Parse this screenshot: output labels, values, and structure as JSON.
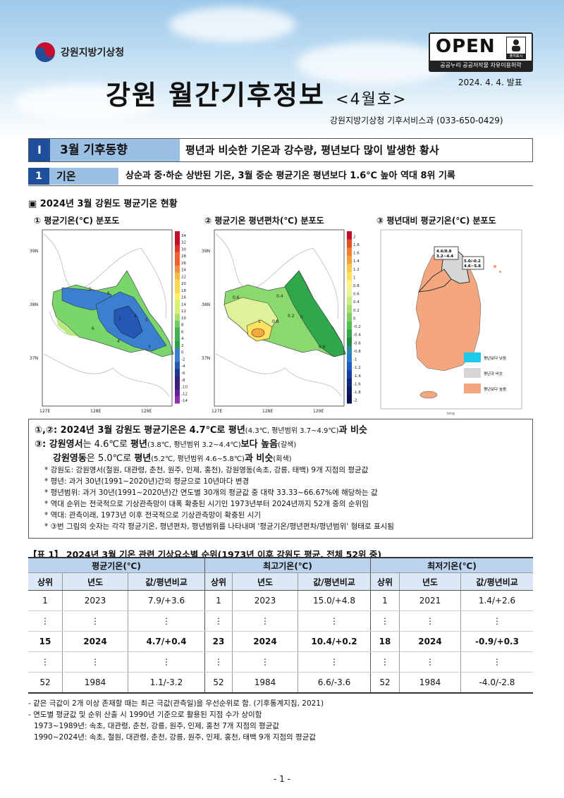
{
  "header": {
    "org": "강원지방기상청",
    "open_badge": {
      "label": "OPEN",
      "sub": "공공누리  공공저작물 자유이용허락",
      "icon_label": "출처표시"
    },
    "title": "강원 월간기후정보",
    "title_sub": "<4월호>",
    "date": "2024. 4. 4. 발표",
    "dept": "강원지방기상청 기후서비스과 (033-650-0429)"
  },
  "section": {
    "num": "Ⅰ",
    "tag": "3월 기후동향",
    "text": "평년과 비슷한 기온과 강수량, 평년보다 많이 발생한 황사"
  },
  "subsection": {
    "num": "1",
    "tag": "기온",
    "text": "상순과 중·하순 상반된 기온, 3월 중순 평균기온 평년보다 1.6℃ 높아 역대 8위 기록"
  },
  "figure": {
    "header": "▣  2024년 3월 강원도 평균기온 현황",
    "maps": [
      {
        "title": "①  평균기온(℃) 분포도",
        "lat_labels": [
          "39N",
          "38N",
          "37N"
        ],
        "lon_labels": [
          "127E",
          "128E",
          "129E"
        ],
        "colorbar": [
          "34",
          "32",
          "30",
          "28",
          "26",
          "24",
          "22",
          "20",
          "18",
          "16",
          "14",
          "12",
          "10",
          "8",
          "6",
          "4",
          "2",
          "0",
          "-2",
          "-4",
          "-6",
          "-8",
          "-10",
          "-12",
          "-14"
        ],
        "contour_labels": [
          "5",
          "6",
          "3",
          "4",
          "5",
          "6",
          "4",
          "3"
        ]
      },
      {
        "title": "②  평균기온 평년편차(℃) 분포도",
        "lat_labels": [
          "39N",
          "38N",
          "37N"
        ],
        "lon_labels": [
          "127E",
          "128E",
          "129E"
        ],
        "colorbar": [
          "2",
          "1.8",
          "1.6",
          "1.4",
          "1.2",
          "1",
          "0.8",
          "0.6",
          "0.4",
          "0.2",
          "0",
          "-0.2",
          "-0.4",
          "-0.6",
          "-0.8",
          "-1",
          "-1.2",
          "-1.4",
          "-1.6",
          "-1.8",
          "-2"
        ],
        "contour_labels": [
          "0.6",
          "0.4",
          "0.2",
          "1",
          "0.8",
          "0",
          "0.6"
        ]
      },
      {
        "title": "③  평년대비 평균기온(℃) 분포도",
        "callout_west": [
          "4.6/0.8",
          "3.2~4.4"
        ],
        "callout_east": [
          "5.0/-0.2",
          "4.6~5.8"
        ],
        "legend": [
          "평년보다 낮음",
          "평년과 비슷",
          "평년보다 높음"
        ],
        "axis_label": "long"
      }
    ]
  },
  "summary": {
    "line1": {
      "pre": "①,②: 2024년 3월 강원도 평균기온은 ",
      "v": "4.7℃",
      "mid": "로 평년",
      "paren": "(4.3℃, 평년범위 3.7~4.9℃)",
      "post": "과 비슷"
    },
    "line2": {
      "pre": "③: ",
      "a": "강원영서",
      "b": "는 ",
      "v": "4.6℃",
      "c": "로 ",
      "d": "평년",
      "paren": "(3.8℃, 평년범위 3.2~4.4℃)",
      "e": "보다 높음",
      "tag": "(갈색)"
    },
    "line3": {
      "a": "강원영동",
      "b": "은 ",
      "v": "5.0℃",
      "c": "로 ",
      "d": "평년",
      "paren": "(5.2℃, 평년범위 4.6~5.8℃)",
      "e": "과 비슷",
      "tag": "(회색)"
    },
    "notes": [
      "*  강원도: 강원영서(철원, 대관령, 춘천, 원주, 인제, 홍천), 강원영동(속초, 강릉, 태백) 9개 지점의 평균값",
      "*  평년: 과거 30년(1991~2020년)간의 평균으로 10년마다 변경",
      "*  평년범위: 과거 30년(1991~2020년)간 연도별 30개의 평균값 중 대략 33.33~66.67%에 해당하는 값",
      "*  역대 순위는 전국적으로 기상관측망이 대폭 확충된 시기인 1973년부터 2024년까지 52개 중의 순위임",
      "*  역대: 관측이래, 1973년 이후 전국적으로 기상관측망이 확충된 시기",
      "*  ③번 그림의 숫자는 각각 평균기온, 평년편차, 평년범위를 나타내며 '평균기온/평년편차/평년범위' 형태로 표시됨"
    ]
  },
  "table": {
    "title": "【표 1】 2024년 3월 기온 관련 기상요소별 순위(1973년 이후 강원도 평균, 전체 52위 중)",
    "groups": [
      "평균기온(℃)",
      "최고기온(℃)",
      "최저기온(℃)"
    ],
    "cols": [
      "상위",
      "년도",
      "값/평년비교"
    ],
    "rows": [
      [
        "1",
        "2023",
        "7.9/+3.6",
        "1",
        "2023",
        "15.0/+4.8",
        "1",
        "2021",
        "1.4/+2.6"
      ],
      [
        "⋮",
        "⋮",
        "⋮",
        "⋮",
        "⋮",
        "⋮",
        "⋮",
        "⋮",
        "⋮"
      ],
      [
        "15",
        "2024",
        "4.7/+0.4",
        "23",
        "2024",
        "10.4/+0.2",
        "18",
        "2024",
        "-0.9/+0.3"
      ],
      [
        "⋮",
        "⋮",
        "⋮",
        "⋮",
        "⋮",
        "⋮",
        "⋮",
        "⋮",
        "⋮"
      ],
      [
        "52",
        "1984",
        "1.1/-3.2",
        "52",
        "1984",
        "6.6/-3.6",
        "52",
        "1984",
        "-4.0/-2.8"
      ]
    ]
  },
  "footnotes": [
    "- 같은 극값이 2개 이상 존재할 때는 최근 극값(관측일)을 우선순위로 함. (기후통계지침, 2021)",
    "- 연도별 평균값 및 순위 산출 시 1990년 기준으로 활용된 지점 수가 상이함",
    "  1973~1989년: 속초, 대관령, 춘천, 강릉, 원주, 인제, 홍천 7개 지점의 평균값",
    "  1990~2024년: 속초, 철원, 대관령, 춘천, 강릉, 원주, 인제, 홍천, 태백 9개 지점의 평균값"
  ],
  "page_number": "- 1 -",
  "colors": {
    "accent": "#1f4e9a",
    "tag_bg": "#9cbfe4",
    "above": "#f4a77e",
    "similar": "#d6d6d6",
    "below": "#20c8ea"
  }
}
